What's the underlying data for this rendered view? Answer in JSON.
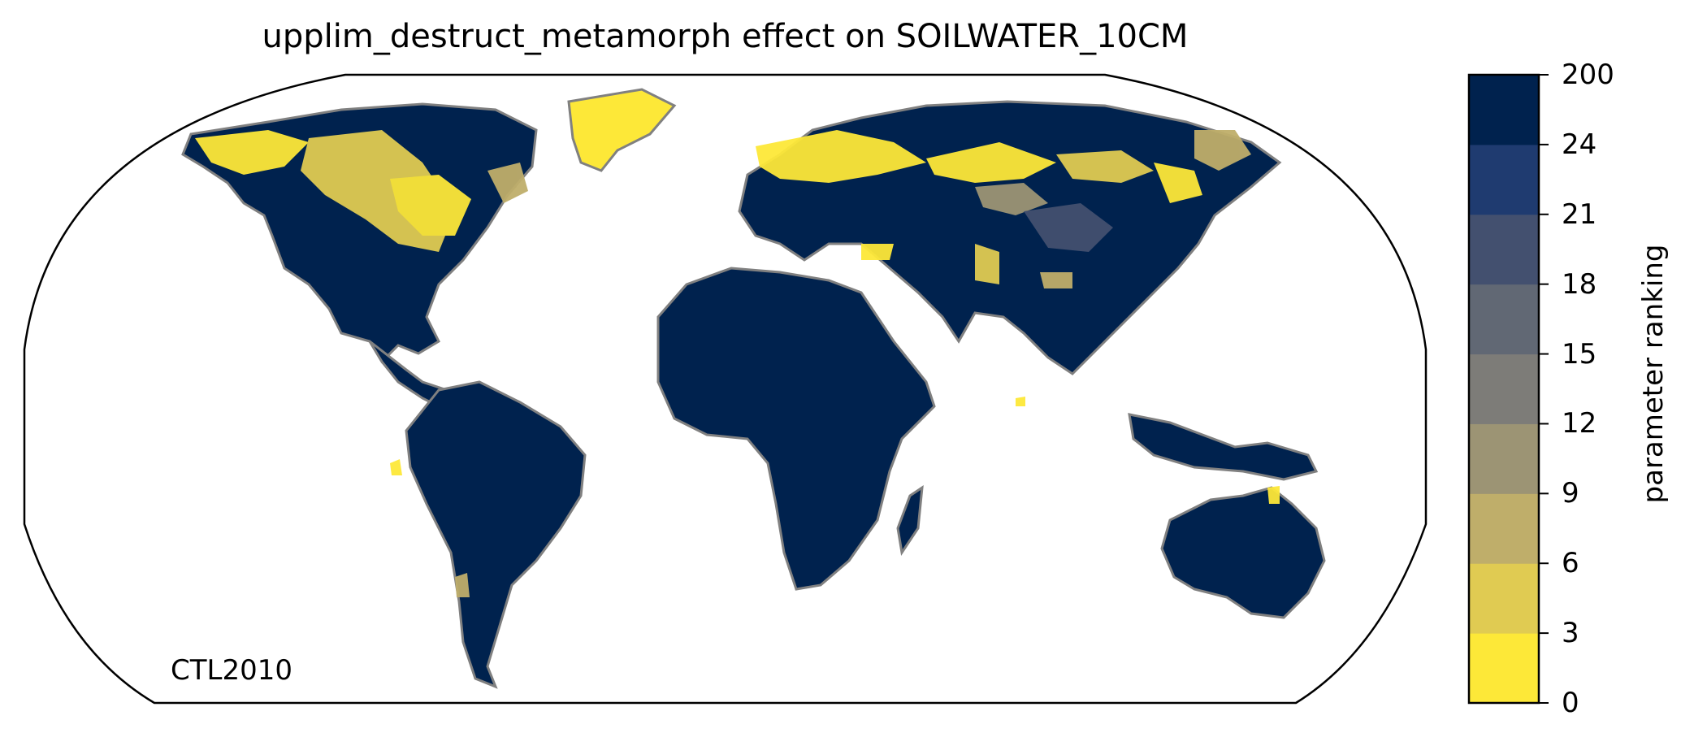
{
  "title": "upplim_destruct_metamorph effect on SOILWATER_10CM",
  "map_label": "CTL2010",
  "colorbar": {
    "label": "parameter ranking",
    "ticks": [
      "0",
      "3",
      "6",
      "9",
      "12",
      "15",
      "18",
      "21",
      "24",
      "200"
    ],
    "colors": [
      "#fde838",
      "#e0cb52",
      "#bfae6a",
      "#9c9474",
      "#7d7c78",
      "#616874",
      "#43506f",
      "#1f3b70",
      "#00224e"
    ]
  },
  "colors": {
    "land_default": "#00224e",
    "coastline": "#808080",
    "map_outline": "#000000"
  }
}
